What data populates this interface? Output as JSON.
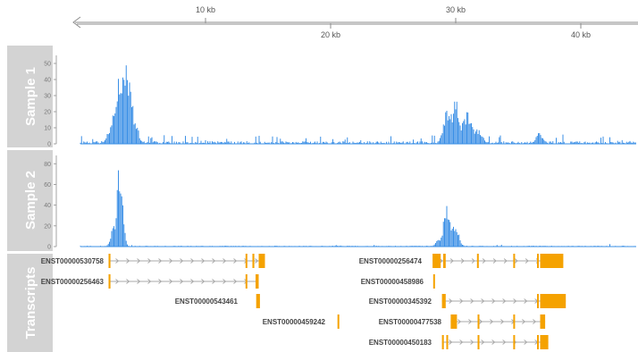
{
  "colors": {
    "coverage": "#3a8fe6",
    "transcript": "#f5a200",
    "intron": "#a8a8a8",
    "panel_title_bg": "#d3d3d3",
    "axis": "#8c8c8c"
  },
  "genome_axis": {
    "labels_top": [
      "10 kb",
      "30 kb"
    ],
    "labels_bottom": [
      "20 kb",
      "40 kb"
    ]
  },
  "tracks": {
    "sample1": {
      "title": "Sample 1",
      "ticks": [
        "50",
        "40",
        "30",
        "20",
        "10",
        "0"
      ]
    },
    "sample2": {
      "title": "Sample 2",
      "ticks": [
        "80",
        "60",
        "40",
        "20",
        "0"
      ]
    },
    "transcripts": {
      "title": "Transcripts"
    }
  },
  "transcript_labels": [
    "ENST00000530758",
    "ENST00000256463",
    "ENST00000543461",
    "ENST00000459242",
    "ENST00000256474",
    "ENST00000458986",
    "ENST00000345392",
    "ENST00000477538",
    "ENST00000450183"
  ],
  "chart_data": [
    {
      "type": "bar",
      "series": [
        {
          "name": "Sample 1"
        }
      ],
      "x": {
        "unit": "kb",
        "ticks": [
          10,
          20,
          30,
          40
        ],
        "range": [
          0.5,
          44.5
        ]
      },
      "ylim": [
        0,
        55
      ],
      "yticks": [
        0,
        10,
        20,
        30,
        40,
        50
      ],
      "peaks": [
        {
          "center_kb": 3.4,
          "width_kb": 0.6,
          "height": 57
        },
        {
          "center_kb": 3.0,
          "width_kb": 0.2,
          "height": 38
        },
        {
          "center_kb": 2.6,
          "width_kb": 0.25,
          "height": 17
        },
        {
          "center_kb": 4.3,
          "width_kb": 0.3,
          "height": 16
        },
        {
          "center_kb": 30.0,
          "width_kb": 0.35,
          "height": 32
        },
        {
          "center_kb": 29.3,
          "width_kb": 0.3,
          "height": 22
        },
        {
          "center_kb": 30.9,
          "width_kb": 0.45,
          "height": 21
        },
        {
          "center_kb": 31.8,
          "width_kb": 0.35,
          "height": 10
        },
        {
          "center_kb": 36.7,
          "width_kb": 0.3,
          "height": 7
        }
      ]
    },
    {
      "type": "bar",
      "series": [
        {
          "name": "Sample 2"
        }
      ],
      "x": {
        "unit": "kb",
        "ticks": [
          10,
          20,
          30,
          40
        ],
        "range": [
          0.5,
          44.5
        ]
      },
      "ylim": [
        0,
        88
      ],
      "yticks": [
        0,
        20,
        40,
        60,
        80
      ],
      "peaks": [
        {
          "center_kb": 3.15,
          "width_kb": 0.22,
          "height": 86
        },
        {
          "center_kb": 2.75,
          "width_kb": 0.25,
          "height": 26
        },
        {
          "center_kb": 29.3,
          "width_kb": 0.28,
          "height": 46
        },
        {
          "center_kb": 29.9,
          "width_kb": 0.3,
          "height": 26
        },
        {
          "center_kb": 28.6,
          "width_kb": 0.2,
          "height": 9
        }
      ]
    }
  ],
  "gene_models": [
    {
      "label": "ENST00000530758",
      "exons_kb": [
        [
          2.25,
          2.4
        ],
        [
          13.2,
          13.3
        ],
        [
          13.75,
          13.9
        ],
        [
          14.25,
          14.75
        ]
      ]
    },
    {
      "label": "ENST00000256463",
      "exons_kb": [
        [
          2.25,
          2.4
        ],
        [
          13.2,
          13.3
        ],
        [
          14.0,
          14.25
        ]
      ]
    },
    {
      "label": "ENST00000543461",
      "exons_kb": [
        [
          14.05,
          14.35
        ]
      ]
    },
    {
      "label": "ENST00000459242",
      "exons_kb": [
        [
          20.55,
          20.65
        ]
      ]
    },
    {
      "label": "ENST00000256474",
      "exons_kb": [
        [
          28.15,
          28.8
        ],
        [
          29.0,
          29.2
        ],
        [
          31.7,
          31.8
        ],
        [
          34.6,
          34.7
        ],
        [
          36.5,
          36.6
        ],
        [
          36.75,
          38.6
        ]
      ]
    },
    {
      "label": "ENST00000458986",
      "exons_kb": [
        [
          28.2,
          28.3
        ]
      ]
    },
    {
      "label": "ENST00000345392",
      "exons_kb": [
        [
          28.9,
          29.2
        ],
        [
          36.5,
          36.6
        ],
        [
          36.75,
          38.8
        ]
      ]
    },
    {
      "label": "ENST00000477538",
      "exons_kb": [
        [
          29.6,
          30.1
        ],
        [
          31.75,
          31.85
        ],
        [
          34.6,
          34.7
        ],
        [
          36.75,
          37.15
        ]
      ]
    },
    {
      "label": "ENST00000450183",
      "exons_kb": [
        [
          28.9,
          29.05
        ],
        [
          29.25,
          29.35
        ],
        [
          31.75,
          31.85
        ],
        [
          34.6,
          34.7
        ],
        [
          36.5,
          36.6
        ],
        [
          36.75,
          37.4
        ]
      ]
    }
  ]
}
